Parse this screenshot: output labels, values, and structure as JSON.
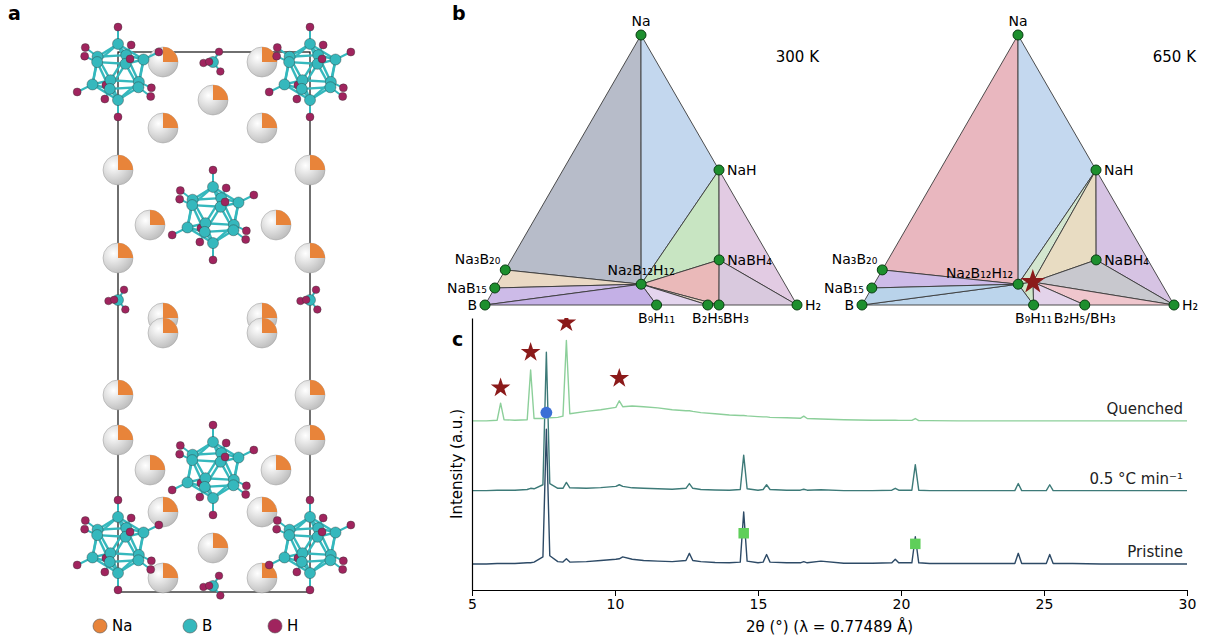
{
  "figure": {
    "panel_labels": [
      "a",
      "b",
      "c"
    ]
  },
  "structure": {
    "legend": [
      {
        "label": "Na",
        "color": "#e8843a"
      },
      {
        "label": "B",
        "color": "#35b8bd"
      },
      {
        "label": "H",
        "color": "#a0245e"
      }
    ]
  },
  "phase_diagrams": [
    {
      "title": "300 K",
      "point_color": "#1d8f2e",
      "points": [
        {
          "label": "Na",
          "composition": [
            1,
            0,
            0
          ],
          "label_side": "top"
        },
        {
          "label": "B",
          "composition": [
            0,
            1,
            0
          ],
          "label_side": "left"
        },
        {
          "label": "H₂",
          "composition": [
            0,
            0,
            1
          ],
          "label_side": "right"
        },
        {
          "label": "NaH",
          "composition": [
            0.5,
            0,
            0.5
          ],
          "label_side": "right"
        },
        {
          "label": "NaBH₄",
          "composition": [
            0.167,
            0.167,
            0.667
          ],
          "label_side": "right"
        },
        {
          "label": "Na₂B₁₂H₁₂",
          "composition": [
            0.077,
            0.462,
            0.462
          ],
          "label_side": "top"
        },
        {
          "label": "Na₃B₂₀",
          "composition": [
            0.13,
            0.87,
            0
          ],
          "label_side": "top-left"
        },
        {
          "label": "NaB₁₅",
          "composition": [
            0.063,
            0.938,
            0
          ],
          "label_side": "left"
        },
        {
          "label": "B₉H₁₁",
          "composition": [
            0,
            0.45,
            0.55
          ],
          "label_side": "bottom"
        },
        {
          "label": "B₂H₅",
          "composition": [
            0,
            0.286,
            0.714
          ],
          "label_side": "bottom"
        },
        {
          "label": "BH₃",
          "composition": [
            0,
            0.25,
            0.75
          ],
          "label_side": "bottom-right"
        }
      ],
      "regions": [
        {
          "vertices": [
            0,
            6,
            5
          ],
          "color": "#b7bcc9"
        },
        {
          "vertices": [
            0,
            5,
            3
          ],
          "color": "#c3d7ee"
        },
        {
          "vertices": [
            3,
            5,
            4
          ],
          "color": "#c8e5c2"
        },
        {
          "vertices": [
            3,
            4,
            2
          ],
          "color": "#e2cbe3"
        },
        {
          "vertices": [
            4,
            5,
            10
          ],
          "color": "#eab9b9"
        },
        {
          "vertices": [
            4,
            10,
            2
          ],
          "color": "#d9c9de"
        },
        {
          "vertices": [
            5,
            9,
            10
          ],
          "color": "#e6d6c6"
        },
        {
          "vertices": [
            5,
            8,
            9
          ],
          "color": "#e4d5ee"
        },
        {
          "vertices": [
            6,
            7,
            5
          ],
          "color": "#ead9c4"
        },
        {
          "vertices": [
            7,
            1,
            5
          ],
          "color": "#cdbbe8"
        },
        {
          "vertices": [
            1,
            8,
            5
          ],
          "color": "#c4b0e6"
        }
      ]
    },
    {
      "title": "650 K",
      "point_color": "#1d8f2e",
      "points": [
        {
          "label": "Na",
          "composition": [
            1,
            0,
            0
          ],
          "label_side": "top"
        },
        {
          "label": "B",
          "composition": [
            0,
            1,
            0
          ],
          "label_side": "left"
        },
        {
          "label": "H₂",
          "composition": [
            0,
            0,
            1
          ],
          "label_side": "right"
        },
        {
          "label": "NaH",
          "composition": [
            0.5,
            0,
            0.5
          ],
          "label_side": "right"
        },
        {
          "label": "NaBH₄",
          "composition": [
            0.167,
            0.167,
            0.667
          ],
          "label_side": "right"
        },
        {
          "label": "Na₂B₁₂H₁₂",
          "composition": [
            0.077,
            0.462,
            0.462
          ],
          "label_side": "top-left"
        },
        {
          "label": "Na₃B₂₀",
          "composition": [
            0.13,
            0.87,
            0
          ],
          "label_side": "top-left"
        },
        {
          "label": "NaB₁₅",
          "composition": [
            0.063,
            0.938,
            0
          ],
          "label_side": "left"
        },
        {
          "label": "B₉H₁₁",
          "composition": [
            0,
            0.45,
            0.55
          ],
          "label_side": "bottom"
        },
        {
          "label": "B₂H₅/BH₃",
          "composition": [
            0,
            0.286,
            0.714
          ],
          "label_side": "bottom"
        },
        {
          "composition": [
            0.085,
            0.41,
            0.505
          ],
          "marker": "star",
          "color": "#8b1a1a"
        }
      ],
      "regions": [
        {
          "vertices": [
            0,
            6,
            5
          ],
          "color": "#e9b7bf"
        },
        {
          "vertices": [
            0,
            5,
            3
          ],
          "color": "#c4d8ef"
        },
        {
          "vertices": [
            3,
            5,
            10
          ],
          "color": "#d3e6cf"
        },
        {
          "vertices": [
            3,
            10,
            4
          ],
          "color": "#e8dcc2"
        },
        {
          "vertices": [
            3,
            4,
            2
          ],
          "color": "#d6c3e3"
        },
        {
          "vertices": [
            4,
            10,
            2
          ],
          "color": "#c8c8ce"
        },
        {
          "vertices": [
            10,
            9,
            2
          ],
          "color": "#efc6cd"
        },
        {
          "vertices": [
            10,
            8,
            9
          ],
          "color": "#e3d3ea"
        },
        {
          "vertices": [
            5,
            8,
            10
          ],
          "color": "#cfe7c9"
        },
        {
          "vertices": [
            5,
            1,
            8
          ],
          "color": "#bcd5ec"
        },
        {
          "vertices": [
            6,
            7,
            5
          ],
          "color": "#cdbbe8"
        },
        {
          "vertices": [
            7,
            1,
            5
          ],
          "color": "#b9d3ea"
        }
      ]
    }
  ],
  "chart_data": {
    "type": "line",
    "x_label": "2θ (°) (λ = 0.77489 Å)",
    "y_label": "Intensity (a.u.)",
    "xlim": [
      5,
      30
    ],
    "xticks": [
      5,
      10,
      15,
      20,
      25,
      30
    ],
    "ylim": [
      0,
      11.5
    ],
    "yticks": [],
    "tick_labels": "x",
    "x": [
      5,
      5.5,
      5.88,
      6.0,
      6.12,
      6.5,
      6.93,
      7.05,
      7.17,
      7.48,
      7.6,
      7.72,
      8.0,
      8.18,
      8.3,
      8.42,
      9.0,
      9.5,
      10.03,
      10.15,
      10.27,
      10.6,
      11,
      11.5,
      12,
      12.48,
      12.6,
      12.72,
      13,
      13.5,
      14,
      14.38,
      14.5,
      14.62,
      15.0,
      15.18,
      15.3,
      15.42,
      16,
      16.48,
      16.6,
      16.72,
      17.2,
      18,
      19,
      19.68,
      19.8,
      19.92,
      20.38,
      20.5,
      20.62,
      21,
      22,
      23,
      23.98,
      24.1,
      24.22,
      25.08,
      25.2,
      25.32,
      26,
      27,
      28,
      29,
      30
    ],
    "series": [
      {
        "name": "Pristine",
        "color": "#2d4a66",
        "values": [
          1.1,
          1.1,
          1.12,
          1.12,
          1.12,
          1.12,
          1.15,
          1.15,
          1.18,
          1.4,
          6.8,
          1.45,
          1.2,
          1.18,
          1.32,
          1.18,
          1.2,
          1.25,
          1.3,
          1.32,
          1.4,
          1.3,
          1.25,
          1.22,
          1.2,
          1.25,
          1.55,
          1.25,
          1.2,
          1.16,
          1.15,
          1.18,
          3.3,
          1.22,
          1.15,
          1.18,
          1.5,
          1.18,
          1.15,
          1.15,
          1.2,
          1.15,
          1.22,
          1.13,
          1.13,
          1.15,
          1.3,
          1.15,
          1.15,
          2.25,
          1.15,
          1.12,
          1.12,
          1.12,
          1.12,
          1.55,
          1.12,
          1.12,
          1.5,
          1.12,
          1.12,
          1.1,
          1.1,
          1.1,
          1.1
        ]
      },
      {
        "name": "0.5 °C min⁻¹",
        "color": "#3d7a78",
        "values": [
          4.2,
          4.2,
          4.22,
          4.22,
          4.22,
          4.22,
          4.25,
          4.3,
          4.28,
          4.45,
          10.05,
          4.5,
          4.3,
          4.3,
          4.55,
          4.32,
          4.3,
          4.33,
          4.38,
          4.45,
          4.38,
          4.32,
          4.3,
          4.28,
          4.26,
          4.3,
          4.5,
          4.3,
          4.25,
          4.23,
          4.22,
          4.25,
          5.7,
          4.28,
          4.22,
          4.25,
          4.45,
          4.25,
          4.22,
          4.22,
          4.26,
          4.22,
          4.24,
          4.2,
          4.2,
          4.22,
          4.3,
          4.22,
          4.22,
          5.3,
          4.22,
          4.2,
          4.2,
          4.2,
          4.2,
          4.5,
          4.2,
          4.2,
          4.45,
          4.2,
          4.2,
          4.2,
          4.2,
          4.2,
          4.2
        ]
      },
      {
        "name": "Quenched",
        "color": "#8ccf9a",
        "values": [
          7.15,
          7.15,
          7.18,
          7.9,
          7.2,
          7.18,
          7.2,
          9.3,
          7.25,
          7.25,
          7.3,
          7.28,
          7.3,
          7.35,
          10.55,
          7.45,
          7.55,
          7.62,
          7.72,
          8.0,
          7.75,
          7.78,
          7.75,
          7.7,
          7.62,
          7.58,
          7.58,
          7.55,
          7.5,
          7.45,
          7.4,
          7.38,
          7.38,
          7.36,
          7.33,
          7.32,
          7.32,
          7.3,
          7.28,
          7.26,
          7.35,
          7.25,
          7.23,
          7.2,
          7.18,
          7.18,
          7.18,
          7.17,
          7.17,
          7.25,
          7.16,
          7.16,
          7.15,
          7.15,
          7.15,
          7.15,
          7.15,
          7.15,
          7.15,
          7.15,
          7.15,
          7.15,
          7.15,
          7.15,
          7.15
        ]
      }
    ],
    "peak_markers": [
      {
        "marker": "circle",
        "color": "#3b6fd6",
        "x": [
          7.6
        ],
        "y": [
          7.5
        ]
      },
      {
        "marker": "square",
        "color": "#5fcf5a",
        "x": [
          14.5,
          20.5
        ],
        "y": [
          2.4,
          1.95
        ]
      },
      {
        "marker": "star",
        "color": "#8b1a1a",
        "x": [
          6.0,
          7.05,
          8.3,
          10.15
        ],
        "y": [
          8.55,
          10.05,
          11.3,
          8.95
        ]
      }
    ]
  }
}
